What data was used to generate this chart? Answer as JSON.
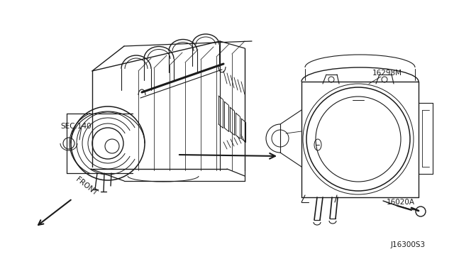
{
  "bg_color": "#ffffff",
  "line_color": "#1a1a1a",
  "label_sec140": "SEC.140",
  "label_16298M": "16298M",
  "label_16020A": "16020A",
  "label_diagram_id": "J16300S3",
  "label_front": "FRONT",
  "figsize": [
    6.4,
    3.72
  ],
  "dpi": 100
}
